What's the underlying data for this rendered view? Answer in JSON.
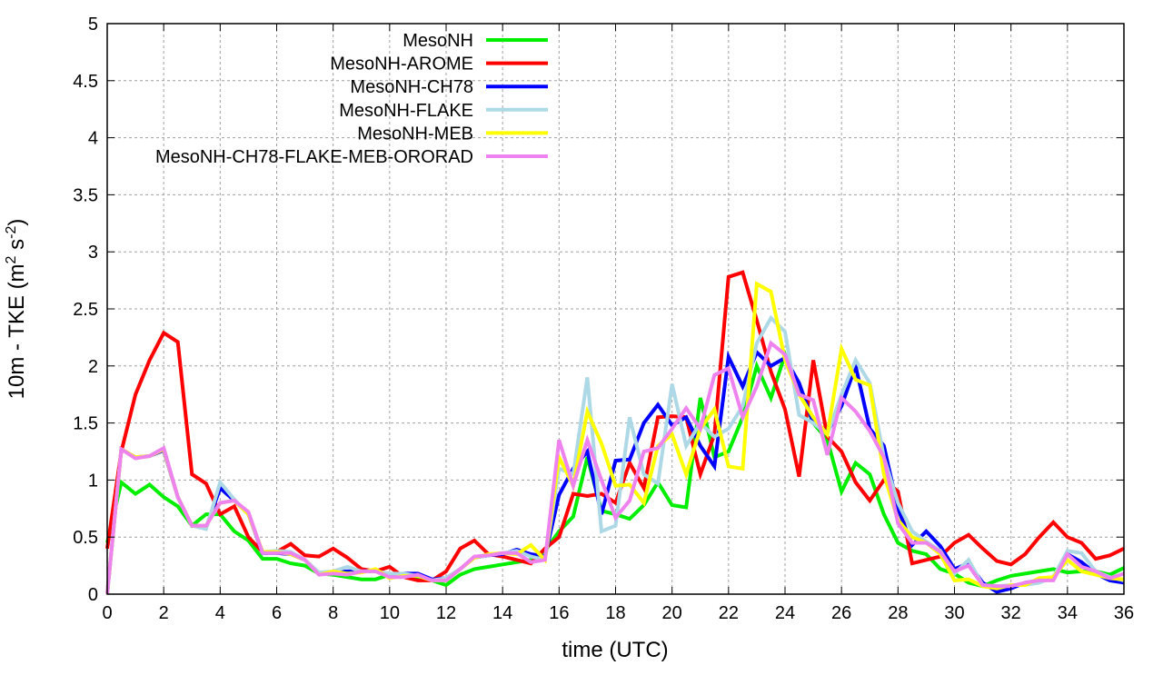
{
  "chart_data": {
    "type": "line",
    "title": "",
    "xlabel": "time (UTC)",
    "ylabel": {
      "prefix": "10m - TKE (m",
      "sup1": "2",
      "mid": " s",
      "sup2": "-2",
      "suffix": ")"
    },
    "xlim": [
      0,
      36
    ],
    "ylim": [
      0,
      5
    ],
    "xticks": [
      0,
      2,
      4,
      6,
      8,
      10,
      12,
      14,
      16,
      18,
      20,
      22,
      24,
      26,
      28,
      30,
      32,
      34,
      36
    ],
    "yticks": [
      "0",
      "0.5",
      "1",
      "1.5",
      "2",
      "2.5",
      "3",
      "3.5",
      "4",
      "4.5",
      "5"
    ],
    "grid": true,
    "legend_position": "top-left",
    "x_step": 0.5,
    "series": [
      {
        "name": "MesoNH",
        "color": "#00ee00",
        "values": [
          0.45,
          0.98,
          0.88,
          0.96,
          0.85,
          0.77,
          0.6,
          0.7,
          0.7,
          0.55,
          0.47,
          0.31,
          0.31,
          0.27,
          0.25,
          0.18,
          0.17,
          0.15,
          0.13,
          0.13,
          0.17,
          0.17,
          0.15,
          0.12,
          0.08,
          0.17,
          0.22,
          0.24,
          0.26,
          0.28,
          0.3,
          0.38,
          0.55,
          0.68,
          1.2,
          0.73,
          0.7,
          0.66,
          0.78,
          0.98,
          0.78,
          0.76,
          1.72,
          1.2,
          1.25,
          1.55,
          2.0,
          1.72,
          2.1,
          1.8,
          1.5,
          1.35,
          0.9,
          1.15,
          1.05,
          0.7,
          0.45,
          0.38,
          0.35,
          0.22,
          0.18,
          0.1,
          0.07,
          0.12,
          0.16,
          0.18,
          0.2,
          0.22,
          0.19,
          0.2,
          0.2,
          0.17,
          0.23
        ]
      },
      {
        "name": "MesoNH-AROME",
        "color": "#ff0000",
        "values": [
          0.4,
          1.25,
          1.75,
          2.05,
          2.29,
          2.21,
          1.05,
          0.97,
          0.7,
          0.77,
          0.5,
          0.37,
          0.37,
          0.44,
          0.34,
          0.33,
          0.4,
          0.32,
          0.22,
          0.2,
          0.24,
          0.15,
          0.12,
          0.12,
          0.2,
          0.4,
          0.47,
          0.35,
          0.33,
          0.3,
          0.27,
          0.4,
          0.5,
          0.88,
          0.86,
          0.88,
          0.8,
          1.15,
          0.93,
          1.55,
          1.56,
          1.55,
          1.05,
          1.4,
          2.78,
          2.82,
          2.4,
          1.95,
          1.62,
          1.03,
          2.05,
          1.38,
          1.25,
          0.98,
          0.82,
          1.0,
          0.9,
          0.27,
          0.3,
          0.33,
          0.45,
          0.52,
          0.4,
          0.29,
          0.26,
          0.35,
          0.5,
          0.63,
          0.5,
          0.45,
          0.31,
          0.34,
          0.4
        ]
      },
      {
        "name": "MesoNH-CH78",
        "color": "#0000ff",
        "values": [
          0.0,
          1.27,
          1.2,
          1.21,
          1.26,
          0.85,
          0.6,
          0.58,
          0.93,
          0.82,
          0.7,
          0.36,
          0.36,
          0.35,
          0.3,
          0.18,
          0.19,
          0.2,
          0.2,
          0.21,
          0.16,
          0.18,
          0.18,
          0.13,
          0.14,
          0.22,
          0.32,
          0.34,
          0.35,
          0.39,
          0.35,
          0.33,
          0.87,
          1.1,
          1.25,
          0.7,
          1.17,
          1.18,
          1.5,
          1.66,
          1.48,
          1.55,
          1.3,
          1.12,
          2.08,
          1.82,
          2.12,
          2.0,
          2.07,
          1.85,
          1.5,
          1.42,
          1.65,
          2.0,
          1.45,
          1.3,
          0.75,
          0.43,
          0.55,
          0.42,
          0.22,
          0.27,
          0.1,
          0.02,
          0.05,
          0.1,
          0.12,
          0.15,
          0.35,
          0.28,
          0.18,
          0.12,
          0.1
        ]
      },
      {
        "name": "MesoNH-FLAKE",
        "color": "#add8e6",
        "values": [
          0.0,
          1.27,
          1.2,
          1.21,
          1.27,
          0.85,
          0.6,
          0.57,
          0.98,
          0.83,
          0.7,
          0.37,
          0.38,
          0.37,
          0.3,
          0.19,
          0.2,
          0.24,
          0.2,
          0.2,
          0.18,
          0.18,
          0.16,
          0.12,
          0.14,
          0.22,
          0.32,
          0.34,
          0.36,
          0.38,
          0.33,
          0.3,
          1.1,
          1.05,
          1.9,
          0.55,
          0.6,
          1.55,
          1.05,
          0.97,
          1.84,
          1.3,
          1.5,
          1.38,
          1.45,
          1.65,
          2.2,
          2.42,
          2.3,
          1.57,
          1.5,
          1.4,
          1.75,
          2.05,
          1.85,
          1.2,
          0.8,
          0.55,
          0.46,
          0.38,
          0.18,
          0.3,
          0.08,
          0.07,
          0.08,
          0.08,
          0.1,
          0.15,
          0.38,
          0.36,
          0.2,
          0.15,
          0.12
        ]
      },
      {
        "name": "MesoNH-MEB",
        "color": "#ffff00",
        "values": [
          0.0,
          1.27,
          1.2,
          1.21,
          1.27,
          0.85,
          0.6,
          0.6,
          0.8,
          0.82,
          0.7,
          0.37,
          0.37,
          0.35,
          0.3,
          0.17,
          0.2,
          0.18,
          0.19,
          0.22,
          0.14,
          0.16,
          0.16,
          0.12,
          0.12,
          0.22,
          0.32,
          0.35,
          0.36,
          0.35,
          0.43,
          0.3,
          1.2,
          0.95,
          1.6,
          1.32,
          0.95,
          0.96,
          0.8,
          1.3,
          1.4,
          1.05,
          1.45,
          1.62,
          1.12,
          1.1,
          2.72,
          2.65,
          2.05,
          1.75,
          1.55,
          1.4,
          2.15,
          1.88,
          1.83,
          1.05,
          0.65,
          0.5,
          0.45,
          0.35,
          0.12,
          0.13,
          0.07,
          0.05,
          0.08,
          0.08,
          0.14,
          0.15,
          0.3,
          0.2,
          0.17,
          0.14,
          0.13
        ]
      },
      {
        "name": "MesoNH-CH78-FLAKE-MEB-ORORAD",
        "color": "#ee82ee",
        "values": [
          0.0,
          1.27,
          1.19,
          1.21,
          1.28,
          0.85,
          0.6,
          0.6,
          0.8,
          0.82,
          0.72,
          0.36,
          0.36,
          0.36,
          0.3,
          0.17,
          0.18,
          0.17,
          0.2,
          0.2,
          0.15,
          0.15,
          0.17,
          0.12,
          0.12,
          0.22,
          0.33,
          0.34,
          0.36,
          0.36,
          0.28,
          0.3,
          1.35,
          0.95,
          1.35,
          1.0,
          0.67,
          0.82,
          1.25,
          1.28,
          1.45,
          1.63,
          1.45,
          1.92,
          1.98,
          1.55,
          1.82,
          2.2,
          2.1,
          1.75,
          1.7,
          1.22,
          1.72,
          1.6,
          1.43,
          1.2,
          0.62,
          0.45,
          0.45,
          0.37,
          0.2,
          0.25,
          0.08,
          0.07,
          0.07,
          0.1,
          0.12,
          0.12,
          0.35,
          0.24,
          0.2,
          0.14,
          0.18
        ]
      }
    ]
  }
}
